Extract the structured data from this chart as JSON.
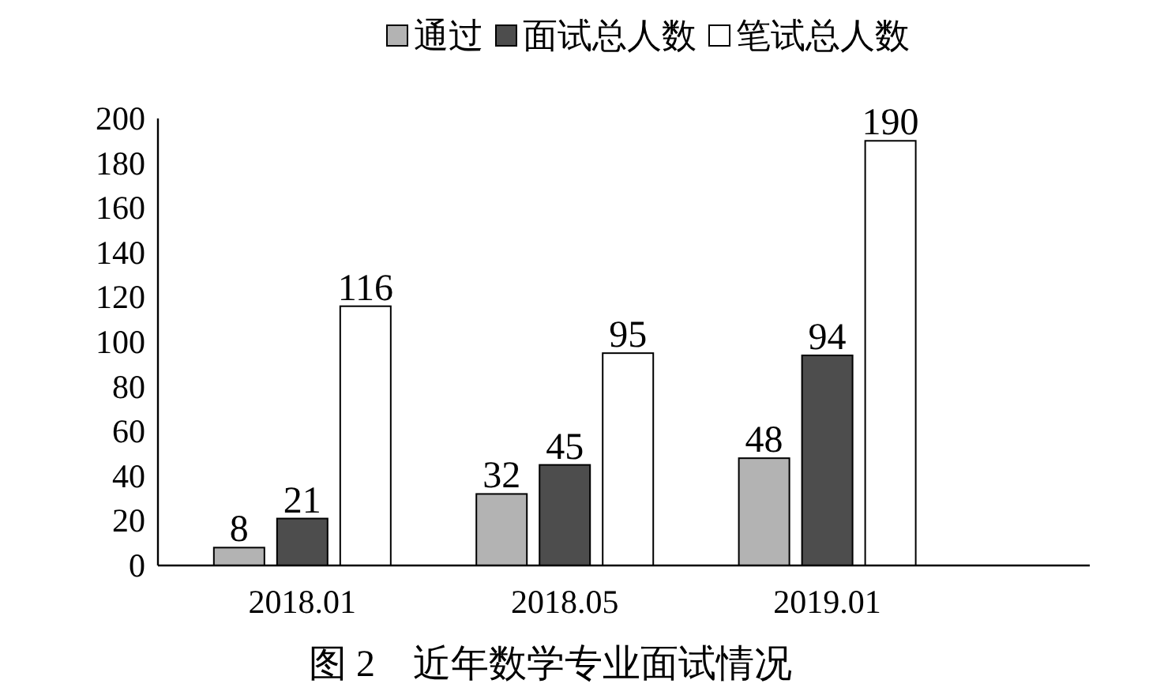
{
  "chart_data": {
    "type": "bar",
    "title": "图 2　近年数学专业面试情况",
    "categories": [
      "2018.01",
      "2018.05",
      "2019.01"
    ],
    "series": [
      {
        "name": "通过",
        "color": "#b3b3b3",
        "values": [
          8,
          32,
          48
        ]
      },
      {
        "name": "面试总人数",
        "color": "#4d4d4d",
        "values": [
          21,
          45,
          94
        ]
      },
      {
        "name": "笔试总人数",
        "color": "#ffffff",
        "values": [
          116,
          95,
          190
        ]
      }
    ],
    "ylim": [
      0,
      200
    ],
    "yticks": [
      0,
      20,
      40,
      60,
      80,
      100,
      120,
      140,
      160,
      180,
      200
    ],
    "data_labels": true,
    "legend": "top",
    "grid": false
  }
}
